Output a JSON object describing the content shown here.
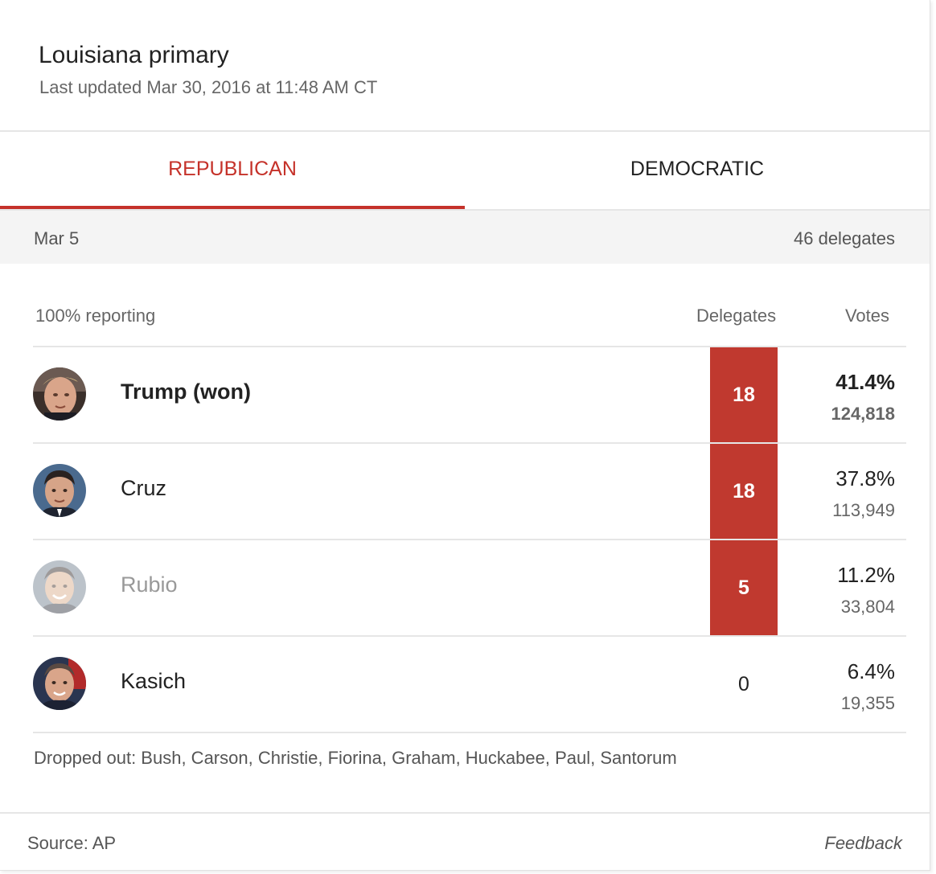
{
  "header": {
    "title": "Louisiana primary",
    "updated": "Last updated Mar 30, 2016 at 11:48 AM CT"
  },
  "tabs": [
    {
      "label": "REPUBLICAN",
      "active": true
    },
    {
      "label": "DEMOCRATIC",
      "active": false
    }
  ],
  "date_bar": {
    "date": "Mar 5",
    "delegates": "46 delegates"
  },
  "table": {
    "reporting": "100% reporting",
    "delegates_header": "Delegates",
    "votes_header": "Votes",
    "rows": [
      {
        "name": "Trump (won)",
        "delegates": "18",
        "percent": "41.4%",
        "votes": "124,818",
        "avatar": "trump-photo"
      },
      {
        "name": "Cruz",
        "delegates": "18",
        "percent": "37.8%",
        "votes": "113,949",
        "avatar": "cruz-photo"
      },
      {
        "name": "Rubio",
        "delegates": "5",
        "percent": "11.2%",
        "votes": "33,804",
        "avatar": "rubio-photo"
      },
      {
        "name": "Kasich",
        "delegates": "0",
        "percent": "6.4%",
        "votes": "19,355",
        "avatar": "kasich-photo"
      }
    ]
  },
  "dropped_out": "Dropped out: Bush, Carson, Christie, Fiorina, Graham, Huckabee, Paul, Santorum",
  "footer": {
    "source": "Source: AP",
    "feedback": "Feedback"
  },
  "colors": {
    "accent": "#c5322a",
    "delegate_bar": "#c0392f",
    "date_bar_bg": "#f4f4f4",
    "divider": "#e6e6e6"
  }
}
